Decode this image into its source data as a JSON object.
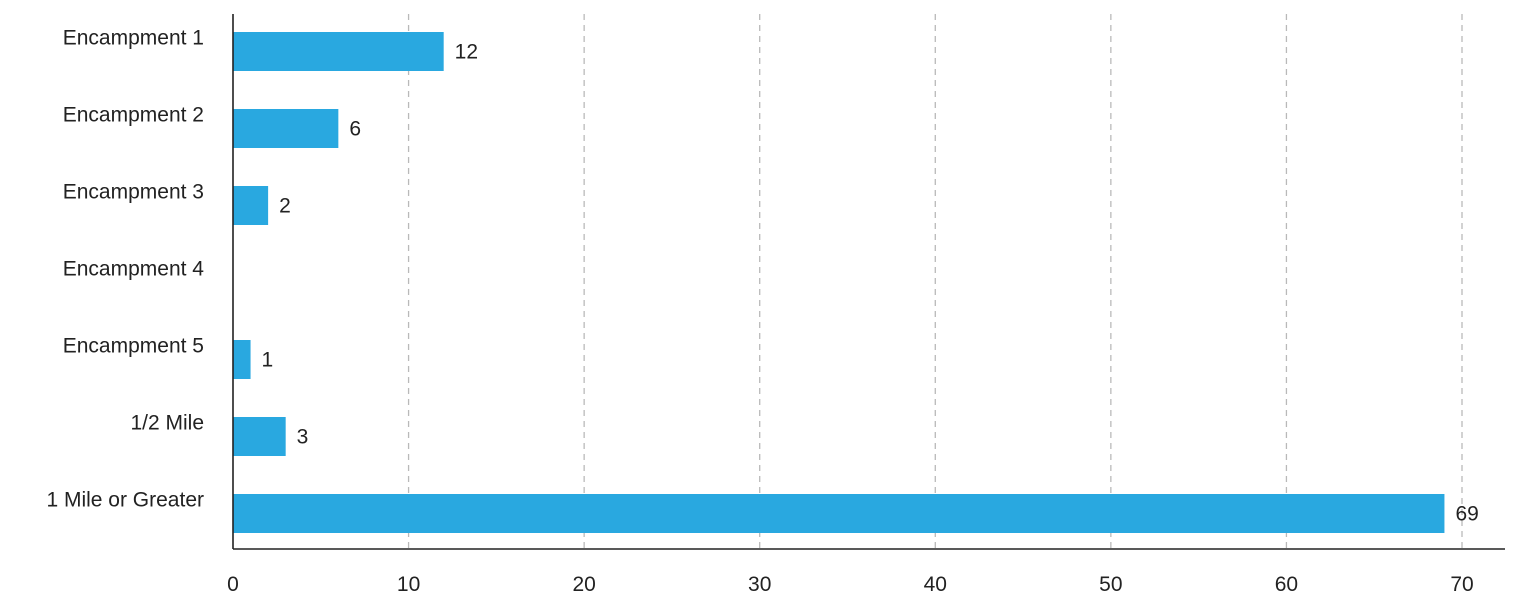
{
  "chart_data": {
    "type": "bar",
    "orientation": "horizontal",
    "categories": [
      "Encampment 1",
      "Encampment 2",
      "Encampment 3",
      "Encampment 4",
      "Encampment 5",
      "1/2 Mile",
      "1 Mile or Greater"
    ],
    "values": [
      12,
      6,
      2,
      null,
      1,
      3,
      69
    ],
    "data_labels": [
      "12",
      "6",
      "2",
      "",
      "1",
      "3",
      "69"
    ],
    "x_ticks": [
      0,
      10,
      20,
      30,
      40,
      50,
      60,
      70
    ],
    "xlim": [
      0,
      70
    ],
    "title": "",
    "xlabel": "",
    "ylabel": "",
    "grid": "vertical dashed",
    "legend": "none",
    "bar_color": "#29a8e0"
  }
}
